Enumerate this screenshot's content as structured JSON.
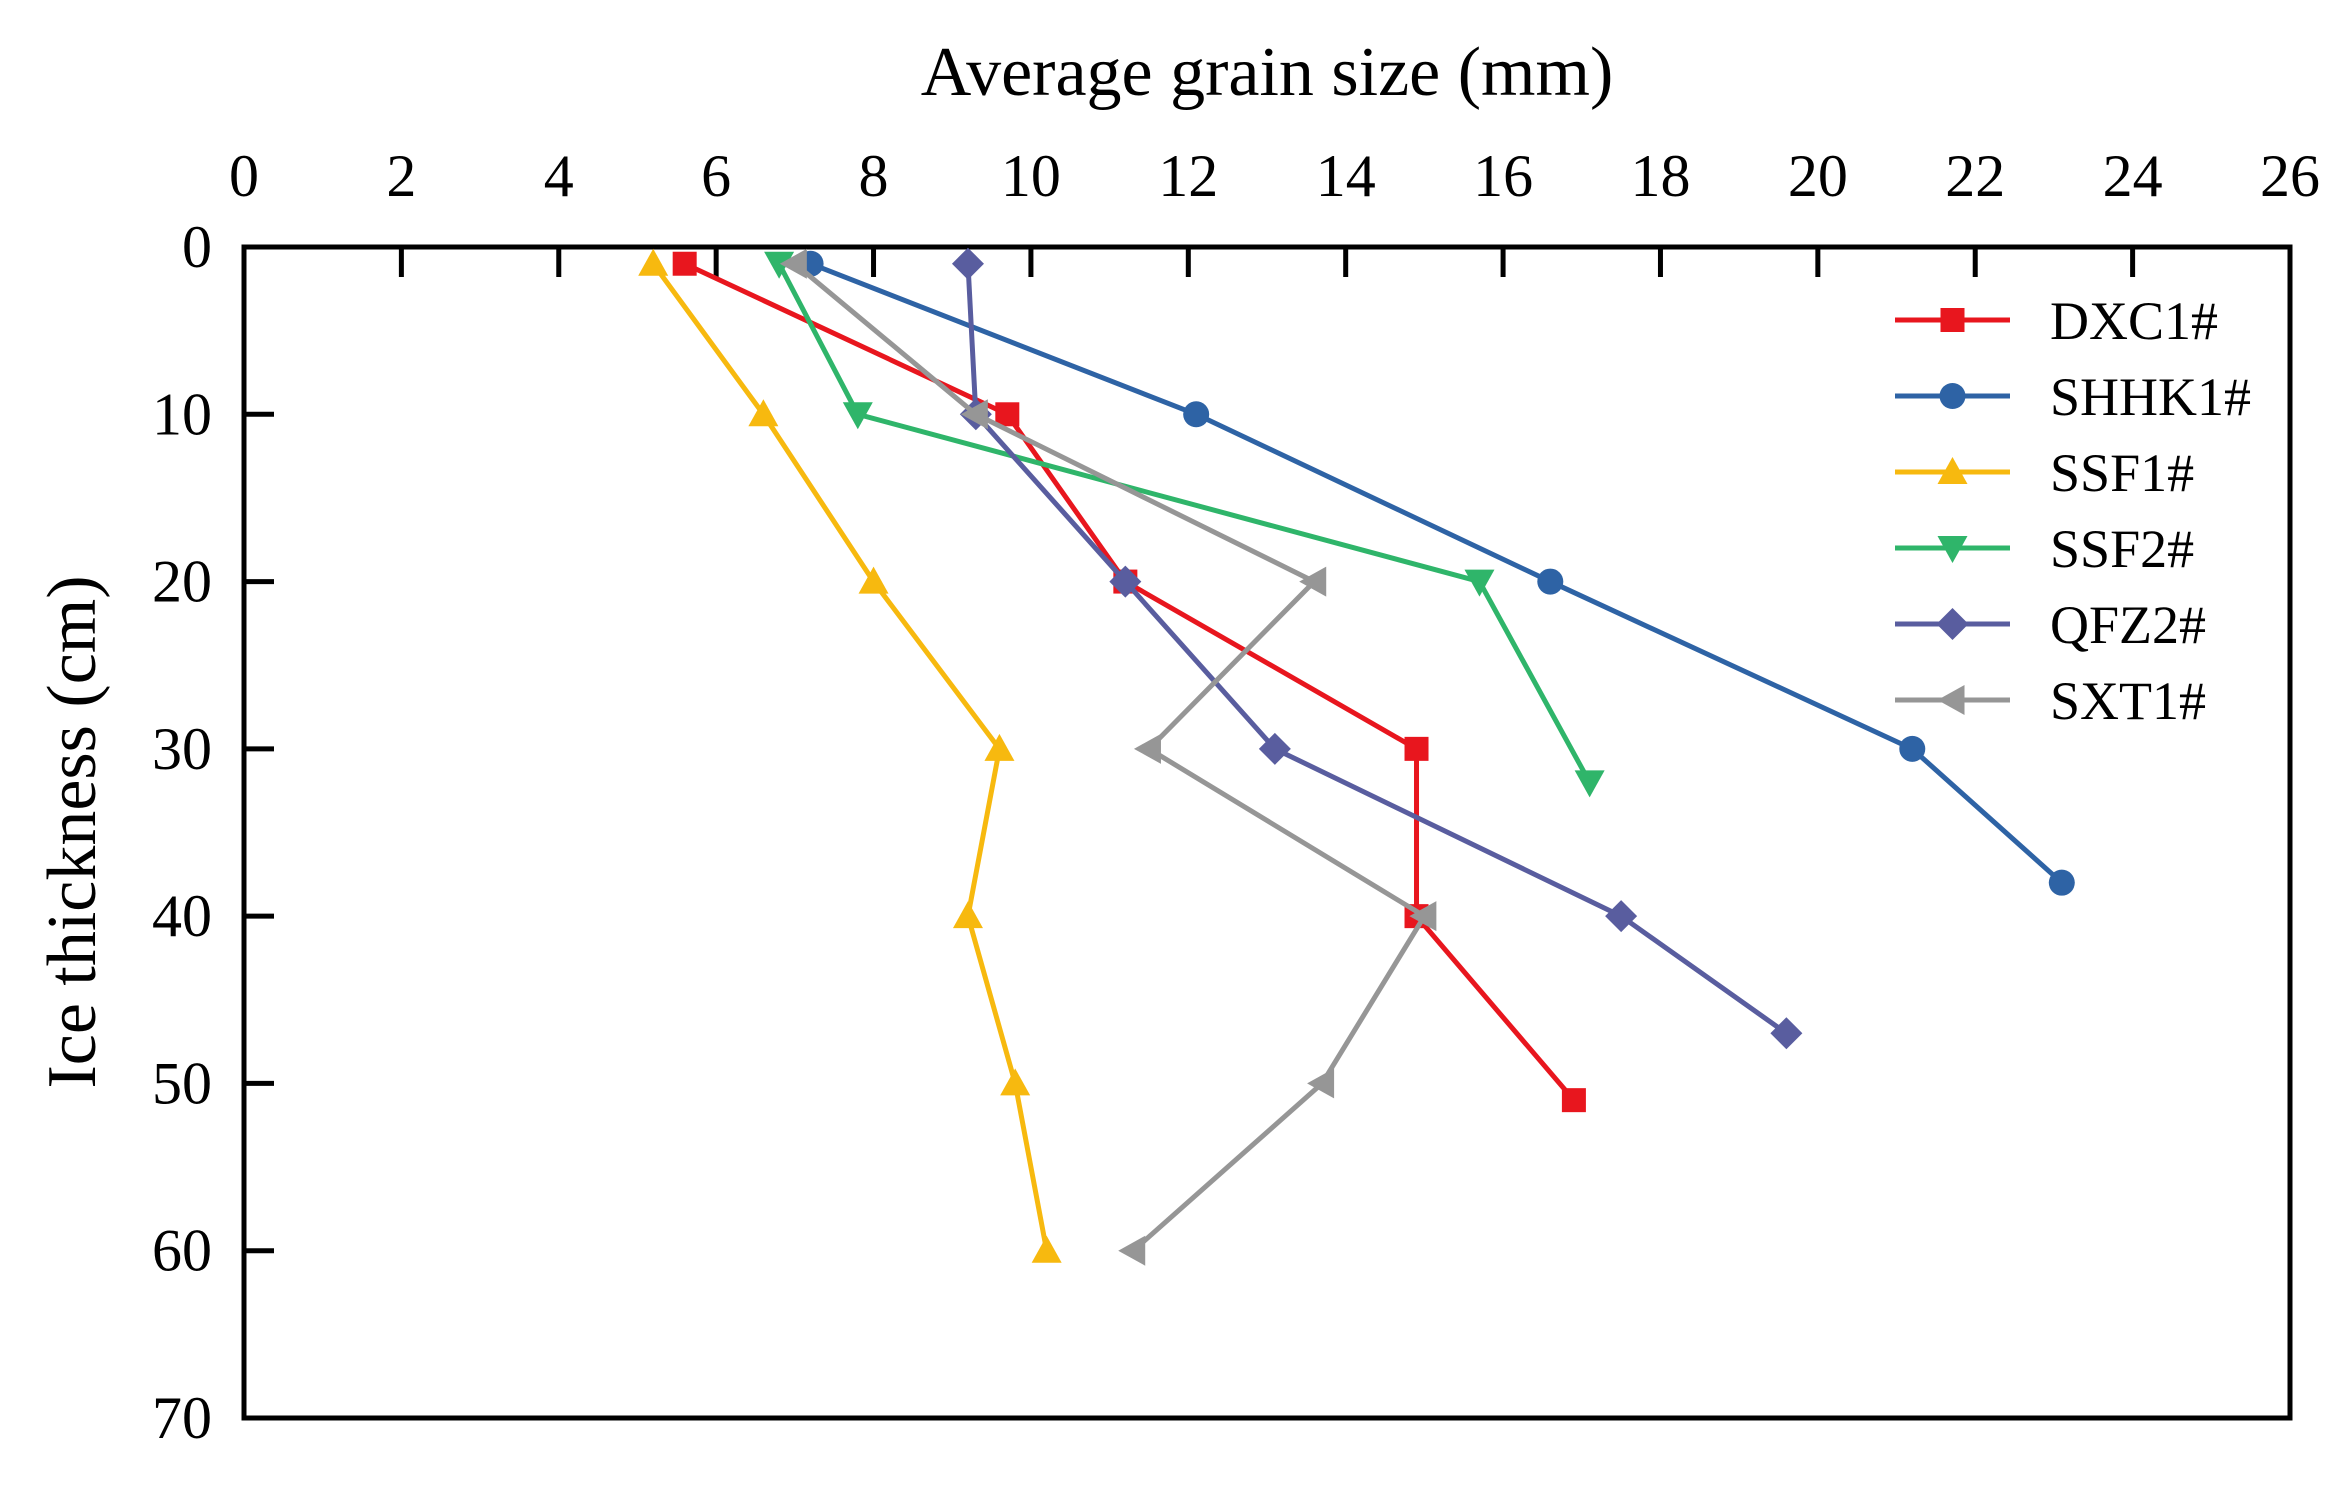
{
  "chart_data": {
    "type": "line",
    "xlabel": "Average grain size (mm)",
    "ylabel": "Ice thickness (cm)",
    "xlim": [
      0,
      26
    ],
    "ylim": [
      0,
      70
    ],
    "y_inverted": true,
    "x_axis_position": "top",
    "x_ticks": [
      0,
      2,
      4,
      6,
      8,
      10,
      12,
      14,
      16,
      18,
      20,
      22,
      24,
      26
    ],
    "y_ticks": [
      0,
      10,
      20,
      30,
      40,
      50,
      60,
      70
    ],
    "grid": false,
    "legend_position": "top-right",
    "series": [
      {
        "name": "DXC1#",
        "color": "#e8161e",
        "marker": "square",
        "x": [
          5.6,
          9.7,
          11.2,
          14.9,
          14.9,
          16.9
        ],
        "y": [
          1,
          10,
          20,
          30,
          40,
          51
        ]
      },
      {
        "name": "SHHK1#",
        "color": "#2e63a5",
        "marker": "circle",
        "x": [
          7.2,
          12.1,
          16.6,
          21.2,
          23.1
        ],
        "y": [
          1,
          10,
          20,
          30,
          38
        ]
      },
      {
        "name": "SSF1#",
        "color": "#f7b90f",
        "marker": "triangle-up",
        "x": [
          5.2,
          6.6,
          8.0,
          9.6,
          9.2,
          9.8,
          10.2
        ],
        "y": [
          1,
          10,
          20,
          30,
          40,
          50,
          60
        ]
      },
      {
        "name": "SSF2#",
        "color": "#2fb56a",
        "marker": "triangle-down",
        "x": [
          6.8,
          7.8,
          15.7,
          17.1
        ],
        "y": [
          1,
          10,
          20,
          32
        ]
      },
      {
        "name": "QFZ2#",
        "color": "#595d9f",
        "marker": "diamond",
        "x": [
          9.2,
          9.3,
          11.2,
          13.1,
          17.5,
          19.6
        ],
        "y": [
          1,
          10,
          20,
          30,
          40,
          47
        ]
      },
      {
        "name": "SXT1#",
        "color": "#969696",
        "marker": "triangle-left",
        "x": [
          7.0,
          9.3,
          13.6,
          11.5,
          15.0,
          13.7,
          11.3
        ],
        "y": [
          1,
          10,
          20,
          30,
          40,
          50,
          60
        ]
      }
    ]
  }
}
